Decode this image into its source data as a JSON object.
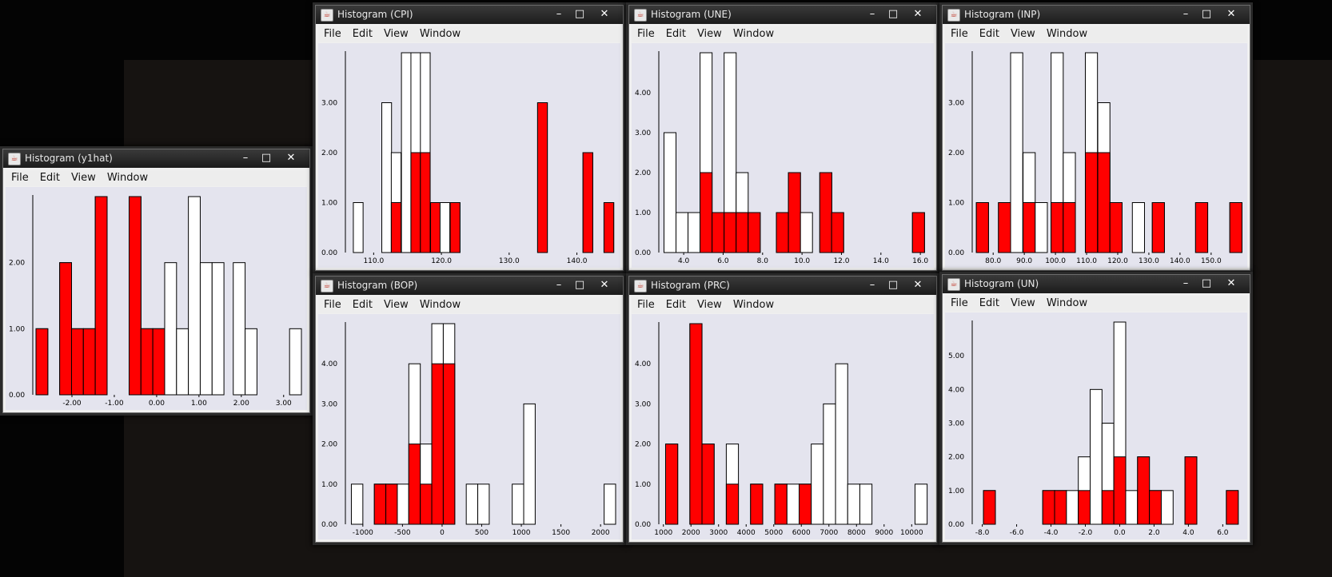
{
  "windows": [
    {
      "id": "y1hat",
      "title": "Histogram (y1hat)",
      "menu": [
        "File",
        "Edit",
        "View",
        "Window"
      ],
      "chart_data": {
        "type": "bar",
        "bin_width": 0.28,
        "xlim": [
          -2.85,
          3.42
        ],
        "ylim": [
          0,
          3
        ],
        "x_ticks": [
          "-2.00",
          "-1.00",
          "0.00",
          "1.00",
          "2.00",
          "3.00"
        ],
        "x_tick_values": [
          -2,
          -1,
          0,
          1,
          2,
          3
        ],
        "y_ticks": [
          "0.00",
          "1.00",
          "2.00"
        ],
        "y_tick_values": [
          0,
          1,
          2
        ],
        "bins": [
          {
            "x": -2.85,
            "total": 1,
            "red": 1
          },
          {
            "x": -2.29,
            "total": 2,
            "red": 2
          },
          {
            "x": -2.01,
            "total": 1,
            "red": 1
          },
          {
            "x": -1.73,
            "total": 1,
            "red": 1
          },
          {
            "x": -1.45,
            "total": 3,
            "red": 3
          },
          {
            "x": -0.65,
            "total": 3,
            "red": 3
          },
          {
            "x": -0.37,
            "total": 1,
            "red": 1
          },
          {
            "x": -0.09,
            "total": 1,
            "red": 1
          },
          {
            "x": 0.19,
            "total": 2,
            "red": 0
          },
          {
            "x": 0.47,
            "total": 1,
            "red": 0
          },
          {
            "x": 0.75,
            "total": 3,
            "red": 0
          },
          {
            "x": 1.03,
            "total": 2,
            "red": 0
          },
          {
            "x": 1.31,
            "total": 2,
            "red": 0
          },
          {
            "x": 1.81,
            "total": 2,
            "red": 0
          },
          {
            "x": 2.09,
            "total": 1,
            "red": 0
          },
          {
            "x": 3.14,
            "total": 1,
            "red": 0
          }
        ]
      }
    },
    {
      "id": "cpi",
      "title": "Histogram (CPI)",
      "menu": [
        "File",
        "Edit",
        "View",
        "Window"
      ],
      "chart_data": {
        "type": "bar",
        "bin_width": 1.44,
        "xlim": [
          106.3,
          145.6
        ],
        "ylim": [
          0,
          4
        ],
        "x_ticks": [
          "110.0",
          "120.0",
          "130.0",
          "140.0"
        ],
        "x_tick_values": [
          110,
          120,
          130,
          140
        ],
        "y_ticks": [
          "0.00",
          "1.00",
          "2.00",
          "3.00"
        ],
        "y_tick_values": [
          0,
          1,
          2,
          3
        ],
        "bins": [
          {
            "x": 107.0,
            "total": 1,
            "red": 0
          },
          {
            "x": 111.2,
            "total": 3,
            "red": 0
          },
          {
            "x": 112.6,
            "total": 2,
            "red": 1
          },
          {
            "x": 114.1,
            "total": 4,
            "red": 0
          },
          {
            "x": 115.5,
            "total": 4,
            "red": 2
          },
          {
            "x": 116.9,
            "total": 4,
            "red": 2
          },
          {
            "x": 118.4,
            "total": 1,
            "red": 1
          },
          {
            "x": 119.8,
            "total": 1,
            "red": 0
          },
          {
            "x": 121.3,
            "total": 1,
            "red": 1
          },
          {
            "x": 134.2,
            "total": 3,
            "red": 3
          },
          {
            "x": 140.9,
            "total": 2,
            "red": 2
          },
          {
            "x": 144.0,
            "total": 1,
            "red": 1
          }
        ]
      }
    },
    {
      "id": "une",
      "title": "Histogram (UNE)",
      "menu": [
        "File",
        "Edit",
        "View",
        "Window"
      ],
      "chart_data": {
        "type": "bar",
        "bin_width": 0.61,
        "xlim": [
          2.9,
          16.4
        ],
        "ylim": [
          0,
          5
        ],
        "x_ticks": [
          "4.0",
          "6.0",
          "8.0",
          "10.0",
          "12.0",
          "14.0",
          "16.0"
        ],
        "x_tick_values": [
          4,
          6,
          8,
          10,
          12,
          14,
          16
        ],
        "y_ticks": [
          "0.00",
          "1.00",
          "2.00",
          "3.00",
          "4.00"
        ],
        "y_tick_values": [
          0,
          1,
          2,
          3,
          4
        ],
        "bins": [
          {
            "x": 3.0,
            "total": 3,
            "red": 0
          },
          {
            "x": 3.61,
            "total": 1,
            "red": 0
          },
          {
            "x": 4.22,
            "total": 1,
            "red": 0
          },
          {
            "x": 4.83,
            "total": 5,
            "red": 2
          },
          {
            "x": 5.44,
            "total": 1,
            "red": 1
          },
          {
            "x": 6.05,
            "total": 5,
            "red": 1
          },
          {
            "x": 6.66,
            "total": 2,
            "red": 1
          },
          {
            "x": 7.27,
            "total": 1,
            "red": 1
          },
          {
            "x": 8.7,
            "total": 1,
            "red": 1
          },
          {
            "x": 9.31,
            "total": 2,
            "red": 2
          },
          {
            "x": 9.92,
            "total": 1,
            "red": 0
          },
          {
            "x": 10.9,
            "total": 2,
            "red": 2
          },
          {
            "x": 11.5,
            "total": 1,
            "red": 1
          },
          {
            "x": 15.6,
            "total": 1,
            "red": 1
          }
        ]
      }
    },
    {
      "id": "inp",
      "title": "Histogram (INP)",
      "menu": [
        "File",
        "Edit",
        "View",
        "Window"
      ],
      "chart_data": {
        "type": "bar",
        "bin_width": 3.9,
        "xlim": [
          74.3,
          159.8
        ],
        "ylim": [
          0,
          4
        ],
        "x_ticks": [
          "80.0",
          "90.0",
          "100.0",
          "110.0",
          "120.0",
          "130.0",
          "140.0",
          "150.0"
        ],
        "x_tick_values": [
          80,
          90,
          100,
          110,
          120,
          130,
          140,
          150
        ],
        "y_ticks": [
          "0.00",
          "1.00",
          "2.00",
          "3.00"
        ],
        "y_tick_values": [
          0,
          1,
          2,
          3
        ],
        "bins": [
          {
            "x": 74.6,
            "total": 1,
            "red": 1
          },
          {
            "x": 81.7,
            "total": 1,
            "red": 1
          },
          {
            "x": 85.6,
            "total": 4,
            "red": 0
          },
          {
            "x": 89.6,
            "total": 2,
            "red": 1
          },
          {
            "x": 93.5,
            "total": 1,
            "red": 0
          },
          {
            "x": 98.6,
            "total": 4,
            "red": 1
          },
          {
            "x": 102.5,
            "total": 2,
            "red": 1
          },
          {
            "x": 109.6,
            "total": 4,
            "red": 2
          },
          {
            "x": 113.6,
            "total": 3,
            "red": 2
          },
          {
            "x": 117.5,
            "total": 1,
            "red": 1
          },
          {
            "x": 124.7,
            "total": 1,
            "red": 0
          },
          {
            "x": 131.1,
            "total": 1,
            "red": 1
          },
          {
            "x": 145.0,
            "total": 1,
            "red": 1
          },
          {
            "x": 156.0,
            "total": 1,
            "red": 1
          }
        ]
      }
    },
    {
      "id": "bop",
      "title": "Histogram (BOP)",
      "menu": [
        "File",
        "Edit",
        "View",
        "Window"
      ],
      "chart_data": {
        "type": "bar",
        "bin_width": 145,
        "xlim": [
          -1180,
          2180
        ],
        "ylim": [
          0,
          5
        ],
        "x_ticks": [
          "-1000",
          "-500",
          "0",
          "500",
          "1000",
          "1500",
          "2000"
        ],
        "x_tick_values": [
          -1000,
          -500,
          0,
          500,
          1000,
          1500,
          2000
        ],
        "y_ticks": [
          "0.00",
          "1.00",
          "2.00",
          "3.00",
          "4.00"
        ],
        "y_tick_values": [
          0,
          1,
          2,
          3,
          4
        ],
        "bins": [
          {
            "x": -1145,
            "total": 1,
            "red": 0
          },
          {
            "x": -855,
            "total": 1,
            "red": 1
          },
          {
            "x": -710,
            "total": 1,
            "red": 1
          },
          {
            "x": -565,
            "total": 1,
            "red": 0
          },
          {
            "x": -420,
            "total": 4,
            "red": 2
          },
          {
            "x": -275,
            "total": 2,
            "red": 1
          },
          {
            "x": -130,
            "total": 5,
            "red": 4
          },
          {
            "x": 15,
            "total": 5,
            "red": 4
          },
          {
            "x": 305,
            "total": 1,
            "red": 0
          },
          {
            "x": 450,
            "total": 1,
            "red": 0
          },
          {
            "x": 885,
            "total": 1,
            "red": 0
          },
          {
            "x": 1030,
            "total": 3,
            "red": 0
          },
          {
            "x": 2045,
            "total": 1,
            "red": 0
          }
        ]
      }
    },
    {
      "id": "prc",
      "title": "Histogram (PRC)",
      "menu": [
        "File",
        "Edit",
        "View",
        "Window"
      ],
      "chart_data": {
        "type": "bar",
        "bin_width": 440,
        "xlim": [
          950,
          10600
        ],
        "ylim": [
          0,
          5
        ],
        "x_ticks": [
          "1000",
          "2000",
          "3000",
          "4000",
          "5000",
          "6000",
          "7000",
          "8000",
          "9000",
          "10000"
        ],
        "x_tick_values": [
          1000,
          2000,
          3000,
          4000,
          5000,
          6000,
          7000,
          8000,
          9000,
          10000
        ],
        "y_ticks": [
          "0.00",
          "1.00",
          "2.00",
          "3.00",
          "4.00"
        ],
        "y_tick_values": [
          0,
          1,
          2,
          3,
          4
        ],
        "bins": [
          {
            "x": 1080,
            "total": 2,
            "red": 2
          },
          {
            "x": 1960,
            "total": 5,
            "red": 5
          },
          {
            "x": 2400,
            "total": 2,
            "red": 2
          },
          {
            "x": 3280,
            "total": 2,
            "red": 1
          },
          {
            "x": 4160,
            "total": 1,
            "red": 1
          },
          {
            "x": 5040,
            "total": 1,
            "red": 1
          },
          {
            "x": 5480,
            "total": 1,
            "red": 0
          },
          {
            "x": 5920,
            "total": 1,
            "red": 1
          },
          {
            "x": 6360,
            "total": 2,
            "red": 0
          },
          {
            "x": 6800,
            "total": 3,
            "red": 0
          },
          {
            "x": 7240,
            "total": 4,
            "red": 0
          },
          {
            "x": 7680,
            "total": 1,
            "red": 0
          },
          {
            "x": 8120,
            "total": 1,
            "red": 0
          },
          {
            "x": 10120,
            "total": 1,
            "red": 0
          }
        ]
      }
    },
    {
      "id": "un",
      "title": "Histogram (UN)",
      "menu": [
        "File",
        "Edit",
        "View",
        "Window"
      ],
      "chart_data": {
        "type": "bar",
        "bin_width": 0.69,
        "xlim": [
          -8.4,
          7.1
        ],
        "ylim": [
          0,
          6
        ],
        "x_ticks": [
          "-8.0",
          "-6.0",
          "-4.0",
          "-2.0",
          "0.0",
          "2.0",
          "4.0",
          "6.0"
        ],
        "x_tick_values": [
          -8,
          -6,
          -4,
          -2,
          0,
          2,
          4,
          6
        ],
        "y_ticks": [
          "0.00",
          "1.00",
          "2.00",
          "3.00",
          "4.00",
          "5.00"
        ],
        "y_tick_values": [
          0,
          1,
          2,
          3,
          4,
          5
        ],
        "bins": [
          {
            "x": -7.93,
            "total": 1,
            "red": 1
          },
          {
            "x": -4.48,
            "total": 1,
            "red": 1
          },
          {
            "x": -3.79,
            "total": 1,
            "red": 1
          },
          {
            "x": -3.1,
            "total": 1,
            "red": 0
          },
          {
            "x": -2.41,
            "total": 2,
            "red": 1
          },
          {
            "x": -1.72,
            "total": 4,
            "red": 0
          },
          {
            "x": -1.03,
            "total": 3,
            "red": 1
          },
          {
            "x": -0.34,
            "total": 6,
            "red": 2
          },
          {
            "x": 0.35,
            "total": 1,
            "red": 0
          },
          {
            "x": 1.04,
            "total": 2,
            "red": 2
          },
          {
            "x": 1.73,
            "total": 1,
            "red": 1
          },
          {
            "x": 2.42,
            "total": 1,
            "red": 0
          },
          {
            "x": 3.8,
            "total": 2,
            "red": 2
          },
          {
            "x": 6.21,
            "total": 1,
            "red": 1
          }
        ]
      }
    }
  ],
  "colors": {
    "highlight": "#ff0000",
    "bar": "#ffffff",
    "plot_bg": "#e4e4ee"
  }
}
